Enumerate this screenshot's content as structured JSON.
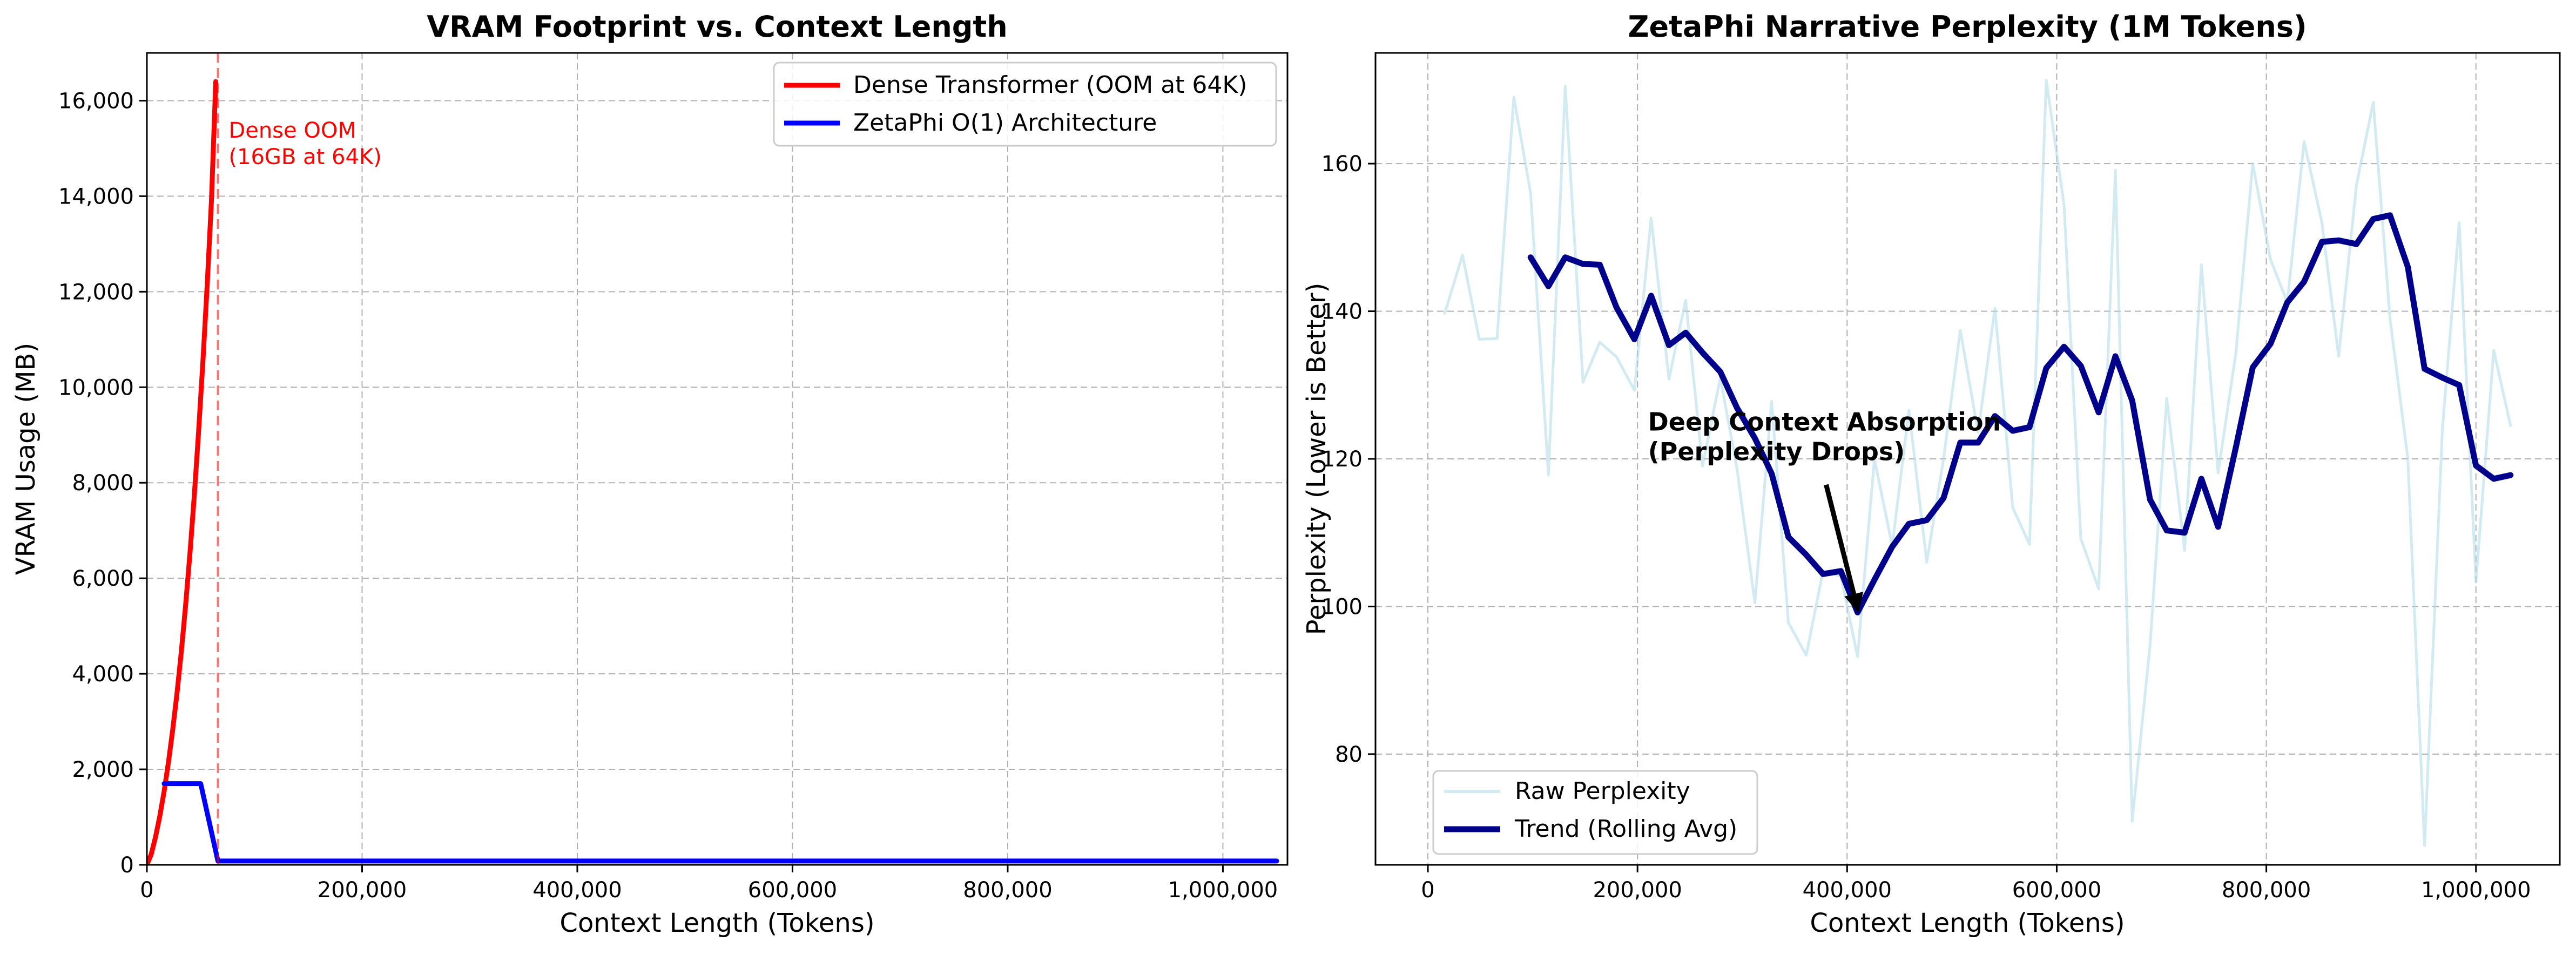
{
  "chart_data": [
    {
      "type": "line",
      "title": "VRAM Footprint vs. Context Length",
      "xlabel": "Context Length (Tokens)",
      "ylabel": "VRAM Usage (MB)",
      "xlim": [
        0,
        1060000
      ],
      "ylim": [
        0,
        17000
      ],
      "x_ticks": [
        0,
        200000,
        400000,
        600000,
        800000,
        1000000
      ],
      "x_tick_labels": [
        "0",
        "200,000",
        "400,000",
        "600,000",
        "800,000",
        "1,000,000"
      ],
      "y_ticks": [
        0,
        2000,
        4000,
        6000,
        8000,
        10000,
        12000,
        14000,
        16000
      ],
      "y_tick_labels": [
        "0",
        "2,000",
        "4,000",
        "6,000",
        "8,000",
        "10,000",
        "12,000",
        "14,000",
        "16,000"
      ],
      "grid": true,
      "legend_position": "top-right",
      "series": [
        {
          "name": "Dense Transformer (OOM at 64K)",
          "color": "#ff0000",
          "x": [
            0,
            4000,
            8000,
            12000,
            16000,
            20000,
            24000,
            28000,
            32000,
            36000,
            40000,
            44000,
            48000,
            52000,
            56000,
            60000,
            64000
          ],
          "values": [
            0,
            220,
            580,
            1020,
            1540,
            2140,
            2830,
            3600,
            4470,
            5440,
            6520,
            7720,
            9050,
            10520,
            12130,
            13900,
            16400
          ]
        },
        {
          "name": "ZetaPhi O(1) Architecture",
          "color": "#0000ff",
          "x": [
            16000,
            50000,
            66000,
            1050000
          ],
          "values": [
            1700,
            1700,
            80,
            80
          ]
        }
      ],
      "annotations": [
        {
          "text": "Dense OOM\n(16GB at 64K)",
          "color": "#ff0000",
          "x": 76000,
          "y": 15000
        },
        {
          "type": "vline",
          "x": 66000,
          "color": "#ff0000",
          "style": "dashed"
        }
      ]
    },
    {
      "type": "line",
      "title": "ZetaPhi Narrative Perplexity (1M Tokens)",
      "xlabel": "Context Length (Tokens)",
      "ylabel": "Perplexity (Lower is Better)",
      "xlim": [
        -50000,
        1080000
      ],
      "ylim": [
        65,
        175
      ],
      "x_ticks": [
        0,
        200000,
        400000,
        600000,
        800000,
        1000000
      ],
      "x_tick_labels": [
        "0",
        "200,000",
        "400,000",
        "600,000",
        "800,000",
        "1,000,000"
      ],
      "y_ticks": [
        80,
        100,
        120,
        140,
        160
      ],
      "y_tick_labels": [
        "80",
        "100",
        "120",
        "140",
        "160"
      ],
      "grid": true,
      "legend_position": "bottom-left",
      "series": [
        {
          "name": "Raw Perplexity",
          "color": "#add8e6",
          "x": [
            16000,
            33000,
            49000,
            66000,
            82000,
            98000,
            115000,
            131000,
            148000,
            164000,
            180000,
            197000,
            213000,
            230000,
            246000,
            262000,
            279000,
            295000,
            312000,
            328000,
            344000,
            361000,
            377000,
            394000,
            410000,
            426000,
            443000,
            459000,
            476000,
            492000,
            508000,
            525000,
            541000,
            558000,
            574000,
            590000,
            607000,
            623000,
            640000,
            656000,
            672000,
            689000,
            705000,
            722000,
            738000,
            754000,
            771000,
            787000,
            804000,
            820000,
            836000,
            853000,
            869000,
            886000,
            902000,
            918000,
            935000,
            951000,
            968000,
            984000,
            1000000,
            1017000,
            1033000
          ],
          "values": [
            139.7,
            147.6,
            136.2,
            136.3,
            169.0,
            156.0,
            117.8,
            170.5,
            130.4,
            135.8,
            133.8,
            129.3,
            152.6,
            130.8,
            141.5,
            119.0,
            131.0,
            118.6,
            100.5,
            127.8,
            97.8,
            93.4,
            104.8,
            104.1,
            93.2,
            120.0,
            108.2,
            126.6,
            106.0,
            120.0,
            137.4,
            123.6,
            140.4,
            113.4,
            108.4,
            171.3,
            154.4,
            109.2,
            102.4,
            159.1,
            70.9,
            94.7,
            128.2,
            107.6,
            146.3,
            118.1,
            134.4,
            160.0,
            147.0,
            141.2,
            163.0,
            152.0,
            133.9,
            157.1,
            168.3,
            139.0,
            120.0,
            67.6,
            124.0,
            152.0,
            103.3,
            134.7,
            124.5
          ]
        },
        {
          "name": "Trend (Rolling Avg)",
          "color": "#00008b",
          "x": [
            98000,
            115000,
            131000,
            148000,
            164000,
            180000,
            197000,
            213000,
            230000,
            246000,
            262000,
            279000,
            295000,
            312000,
            328000,
            344000,
            361000,
            377000,
            394000,
            410000,
            426000,
            443000,
            459000,
            476000,
            492000,
            508000,
            525000,
            541000,
            558000,
            574000,
            590000,
            607000,
            623000,
            640000,
            656000,
            672000,
            689000,
            705000,
            722000,
            738000,
            754000,
            771000,
            787000,
            804000,
            820000,
            836000,
            853000,
            869000,
            886000,
            902000,
            918000,
            935000,
            951000,
            968000,
            984000,
            1000000,
            1017000,
            1033000
          ],
          "values": [
            147.3,
            143.4,
            147.3,
            146.4,
            146.3,
            140.5,
            136.2,
            142.1,
            135.4,
            137.1,
            134.4,
            131.8,
            126.9,
            122.8,
            118.0,
            109.4,
            107.0,
            104.4,
            104.8,
            99.2,
            103.6,
            108.1,
            111.2,
            111.7,
            114.7,
            122.2,
            122.2,
            125.8,
            123.8,
            124.3,
            132.3,
            135.2,
            132.6,
            126.3,
            133.9,
            127.9,
            114.5,
            110.3,
            110.0,
            117.3,
            110.8,
            121.6,
            132.4,
            135.6,
            141.2,
            144.0,
            149.4,
            149.6,
            149.1,
            152.5,
            153.0,
            146.0,
            132.2,
            131.0,
            130.0,
            119.1,
            117.3,
            117.8
          ]
        }
      ],
      "annotations": [
        {
          "text": "Deep Context Absorption\n(Perplexity Drops)",
          "x": 210000,
          "y": 122,
          "arrow_to": {
            "x": 410000,
            "y": 99.2
          },
          "arrow_from": {
            "x": 380000,
            "y": 116.5
          }
        }
      ]
    }
  ]
}
